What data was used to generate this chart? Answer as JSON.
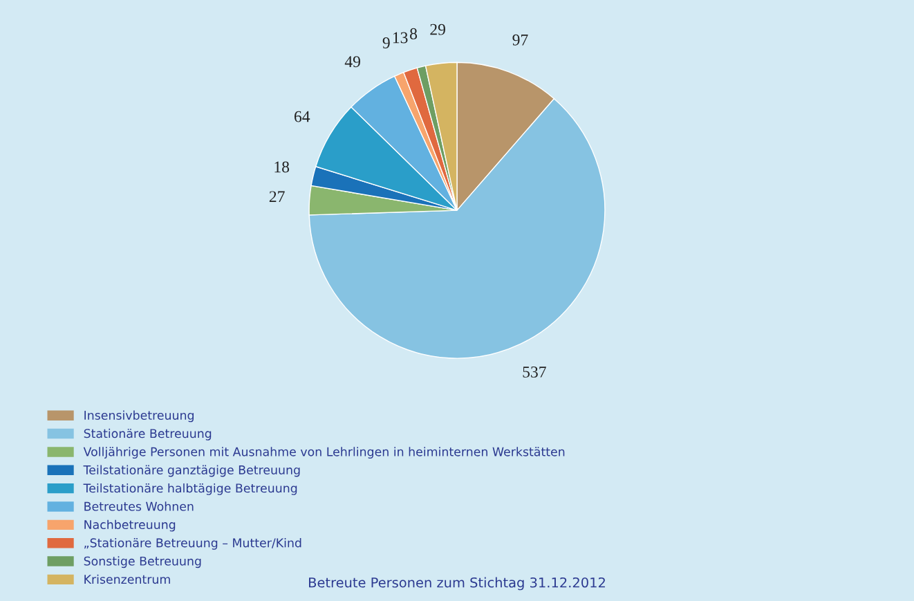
{
  "chart_data": {
    "type": "pie",
    "title": "Betreute Personen zum Stichtag 31.12.2012",
    "categories": [
      "Insensivbetreuung",
      "Stationäre Betreuung",
      "Volljährige Personen mit Ausnahme von Lehrlingen in heiminternen Werkstätten",
      "Teilstationäre ganztägige Betreuung",
      "Teilstationäre halbtägige Betreuung",
      "Betreutes Wohnen",
      "Nachbetreuung",
      "„Stationäre Betreuung – Mutter/Kind",
      "Sonstige Betreuung",
      "Krisenzentrum"
    ],
    "values": [
      97,
      537,
      27,
      18,
      64,
      49,
      9,
      13,
      8,
      29
    ],
    "colors": [
      "#b8956a",
      "#86c3e2",
      "#8ab66e",
      "#1a72b9",
      "#2a9ec9",
      "#62b1e0",
      "#f7a46c",
      "#e0693f",
      "#6e9e63",
      "#d4b461"
    ],
    "data_labels": true,
    "legend": "bottom left"
  }
}
